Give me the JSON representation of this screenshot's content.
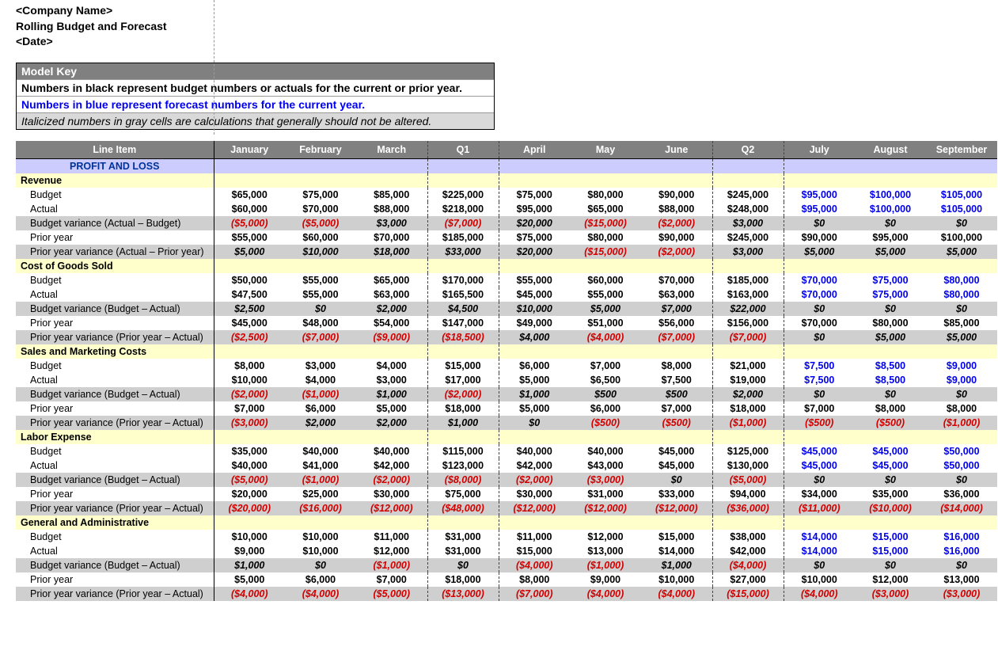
{
  "header": {
    "company": "<Company Name>",
    "title": "Rolling Budget and Forecast",
    "date": "<Date>"
  },
  "model_key": {
    "heading": "Model Key",
    "black": "Numbers in black represent budget numbers or actuals for the current or prior year.",
    "blue": "Numbers in blue represent forecast numbers for the current year.",
    "calc": "Italicized numbers in gray cells are calculations that generally should not be altered."
  },
  "columns": {
    "lineitem": "Line Item",
    "m1": "January",
    "m2": "February",
    "m3": "March",
    "q1": "Q1",
    "m4": "April",
    "m5": "May",
    "m6": "June",
    "q2": "Q2",
    "m7": "July",
    "m8": "August",
    "m9": "September"
  },
  "section_title": "PROFIT AND LOSS",
  "categories": [
    {
      "name": "Revenue",
      "rows": [
        {
          "label": "Budget",
          "calc": false,
          "vals": [
            "$65,000",
            "$75,000",
            "$85,000",
            "$225,000",
            "$75,000",
            "$80,000",
            "$90,000",
            "$245,000",
            "$95,000",
            "$100,000",
            "$105,000"
          ],
          "styles": [
            "b",
            "b",
            "b",
            "q",
            "b",
            "b",
            "b",
            "q",
            "f",
            "f",
            "f"
          ]
        },
        {
          "label": "Actual",
          "calc": false,
          "vals": [
            "$60,000",
            "$70,000",
            "$88,000",
            "$218,000",
            "$95,000",
            "$65,000",
            "$88,000",
            "$248,000",
            "$95,000",
            "$100,000",
            "$105,000"
          ],
          "styles": [
            "b",
            "b",
            "b",
            "q",
            "b",
            "b",
            "b",
            "q",
            "f",
            "f",
            "f"
          ]
        },
        {
          "label": "Budget variance (Actual – Budget)",
          "calc": true,
          "vals": [
            "($5,000)",
            "($5,000)",
            "$3,000",
            "($7,000)",
            "$20,000",
            "($15,000)",
            "($2,000)",
            "$3,000",
            "$0",
            "$0",
            "$0"
          ],
          "styles": [
            "n",
            "n",
            "p",
            "n",
            "p",
            "n",
            "n",
            "p",
            "z",
            "z",
            "z"
          ]
        },
        {
          "label": "Prior year",
          "calc": false,
          "vals": [
            "$55,000",
            "$60,000",
            "$70,000",
            "$185,000",
            "$75,000",
            "$80,000",
            "$90,000",
            "$245,000",
            "$90,000",
            "$95,000",
            "$100,000"
          ],
          "styles": [
            "b",
            "b",
            "b",
            "q",
            "b",
            "b",
            "b",
            "q",
            "b",
            "b",
            "b"
          ]
        },
        {
          "label": "Prior year variance (Actual – Prior year)",
          "calc": true,
          "vals": [
            "$5,000",
            "$10,000",
            "$18,000",
            "$33,000",
            "$20,000",
            "($15,000)",
            "($2,000)",
            "$3,000",
            "$5,000",
            "$5,000",
            "$5,000"
          ],
          "styles": [
            "p",
            "p",
            "p",
            "p",
            "p",
            "n",
            "n",
            "p",
            "p",
            "p",
            "p"
          ]
        }
      ]
    },
    {
      "name": "Cost of Goods Sold",
      "rows": [
        {
          "label": "Budget",
          "calc": false,
          "vals": [
            "$50,000",
            "$55,000",
            "$65,000",
            "$170,000",
            "$55,000",
            "$60,000",
            "$70,000",
            "$185,000",
            "$70,000",
            "$75,000",
            "$80,000"
          ],
          "styles": [
            "b",
            "b",
            "b",
            "q",
            "b",
            "b",
            "b",
            "q",
            "f",
            "f",
            "f"
          ]
        },
        {
          "label": "Actual",
          "calc": false,
          "vals": [
            "$47,500",
            "$55,000",
            "$63,000",
            "$165,500",
            "$45,000",
            "$55,000",
            "$63,000",
            "$163,000",
            "$70,000",
            "$75,000",
            "$80,000"
          ],
          "styles": [
            "b",
            "b",
            "b",
            "q",
            "b",
            "b",
            "b",
            "q",
            "f",
            "f",
            "f"
          ]
        },
        {
          "label": "Budget variance (Budget – Actual)",
          "calc": true,
          "vals": [
            "$2,500",
            "$0",
            "$2,000",
            "$4,500",
            "$10,000",
            "$5,000",
            "$7,000",
            "$22,000",
            "$0",
            "$0",
            "$0"
          ],
          "styles": [
            "p",
            "p",
            "p",
            "p",
            "p",
            "p",
            "p",
            "p",
            "z",
            "z",
            "z"
          ]
        },
        {
          "label": "Prior year",
          "calc": false,
          "vals": [
            "$45,000",
            "$48,000",
            "$54,000",
            "$147,000",
            "$49,000",
            "$51,000",
            "$56,000",
            "$156,000",
            "$70,000",
            "$80,000",
            "$85,000"
          ],
          "styles": [
            "b",
            "b",
            "b",
            "q",
            "b",
            "b",
            "b",
            "q",
            "b",
            "b",
            "b"
          ]
        },
        {
          "label": "Prior year variance (Prior year – Actual)",
          "calc": true,
          "vals": [
            "($2,500)",
            "($7,000)",
            "($9,000)",
            "($18,500)",
            "$4,000",
            "($4,000)",
            "($7,000)",
            "($7,000)",
            "$0",
            "$5,000",
            "$5,000"
          ],
          "styles": [
            "n",
            "n",
            "n",
            "n",
            "p",
            "n",
            "n",
            "n",
            "z",
            "p",
            "p"
          ]
        }
      ]
    },
    {
      "name": "Sales and Marketing Costs",
      "rows": [
        {
          "label": "Budget",
          "calc": false,
          "vals": [
            "$8,000",
            "$3,000",
            "$4,000",
            "$15,000",
            "$6,000",
            "$7,000",
            "$8,000",
            "$21,000",
            "$7,500",
            "$8,500",
            "$9,000"
          ],
          "styles": [
            "b",
            "b",
            "b",
            "q",
            "b",
            "b",
            "b",
            "q",
            "f",
            "f",
            "f"
          ]
        },
        {
          "label": "Actual",
          "calc": false,
          "vals": [
            "$10,000",
            "$4,000",
            "$3,000",
            "$17,000",
            "$5,000",
            "$6,500",
            "$7,500",
            "$19,000",
            "$7,500",
            "$8,500",
            "$9,000"
          ],
          "styles": [
            "b",
            "b",
            "b",
            "q",
            "b",
            "b",
            "b",
            "q",
            "f",
            "f",
            "f"
          ]
        },
        {
          "label": "Budget variance (Budget – Actual)",
          "calc": true,
          "vals": [
            "($2,000)",
            "($1,000)",
            "$1,000",
            "($2,000)",
            "$1,000",
            "$500",
            "$500",
            "$2,000",
            "$0",
            "$0",
            "$0"
          ],
          "styles": [
            "n",
            "n",
            "p",
            "n",
            "p",
            "p",
            "p",
            "p",
            "z",
            "z",
            "z"
          ]
        },
        {
          "label": "Prior year",
          "calc": false,
          "vals": [
            "$7,000",
            "$6,000",
            "$5,000",
            "$18,000",
            "$5,000",
            "$6,000",
            "$7,000",
            "$18,000",
            "$7,000",
            "$8,000",
            "$8,000"
          ],
          "styles": [
            "b",
            "b",
            "b",
            "q",
            "b",
            "b",
            "b",
            "q",
            "b",
            "b",
            "b"
          ]
        },
        {
          "label": "Prior year variance (Prior year – Actual)",
          "calc": true,
          "vals": [
            "($3,000)",
            "$2,000",
            "$2,000",
            "$1,000",
            "$0",
            "($500)",
            "($500)",
            "($1,000)",
            "($500)",
            "($500)",
            "($1,000)"
          ],
          "styles": [
            "n",
            "p",
            "p",
            "p",
            "z",
            "n",
            "n",
            "n",
            "n",
            "n",
            "n"
          ]
        }
      ]
    },
    {
      "name": "Labor Expense",
      "rows": [
        {
          "label": "Budget",
          "calc": false,
          "vals": [
            "$35,000",
            "$40,000",
            "$40,000",
            "$115,000",
            "$40,000",
            "$40,000",
            "$45,000",
            "$125,000",
            "$45,000",
            "$45,000",
            "$50,000"
          ],
          "styles": [
            "b",
            "b",
            "b",
            "q",
            "b",
            "b",
            "b",
            "q",
            "f",
            "f",
            "f"
          ]
        },
        {
          "label": "Actual",
          "calc": false,
          "vals": [
            "$40,000",
            "$41,000",
            "$42,000",
            "$123,000",
            "$42,000",
            "$43,000",
            "$45,000",
            "$130,000",
            "$45,000",
            "$45,000",
            "$50,000"
          ],
          "styles": [
            "b",
            "b",
            "b",
            "q",
            "b",
            "b",
            "b",
            "q",
            "f",
            "f",
            "f"
          ]
        },
        {
          "label": "Budget variance (Budget – Actual)",
          "calc": true,
          "vals": [
            "($5,000)",
            "($1,000)",
            "($2,000)",
            "($8,000)",
            "($2,000)",
            "($3,000)",
            "$0",
            "($5,000)",
            "$0",
            "$0",
            "$0"
          ],
          "styles": [
            "n",
            "n",
            "n",
            "n",
            "n",
            "n",
            "z",
            "n",
            "z",
            "z",
            "z"
          ]
        },
        {
          "label": "Prior year",
          "calc": false,
          "vals": [
            "$20,000",
            "$25,000",
            "$30,000",
            "$75,000",
            "$30,000",
            "$31,000",
            "$33,000",
            "$94,000",
            "$34,000",
            "$35,000",
            "$36,000"
          ],
          "styles": [
            "b",
            "b",
            "b",
            "q",
            "b",
            "b",
            "b",
            "q",
            "b",
            "b",
            "b"
          ]
        },
        {
          "label": "Prior year variance (Prior year – Actual)",
          "calc": true,
          "vals": [
            "($20,000)",
            "($16,000)",
            "($12,000)",
            "($48,000)",
            "($12,000)",
            "($12,000)",
            "($12,000)",
            "($36,000)",
            "($11,000)",
            "($10,000)",
            "($14,000)"
          ],
          "styles": [
            "n",
            "n",
            "n",
            "n",
            "n",
            "n",
            "n",
            "n",
            "n",
            "n",
            "n"
          ]
        }
      ]
    },
    {
      "name": "General and Administrative",
      "rows": [
        {
          "label": "Budget",
          "calc": false,
          "vals": [
            "$10,000",
            "$10,000",
            "$11,000",
            "$31,000",
            "$11,000",
            "$12,000",
            "$15,000",
            "$38,000",
            "$14,000",
            "$15,000",
            "$16,000"
          ],
          "styles": [
            "b",
            "b",
            "b",
            "q",
            "b",
            "b",
            "b",
            "q",
            "f",
            "f",
            "f"
          ]
        },
        {
          "label": "Actual",
          "calc": false,
          "vals": [
            "$9,000",
            "$10,000",
            "$12,000",
            "$31,000",
            "$15,000",
            "$13,000",
            "$14,000",
            "$42,000",
            "$14,000",
            "$15,000",
            "$16,000"
          ],
          "styles": [
            "b",
            "b",
            "b",
            "q",
            "b",
            "b",
            "b",
            "q",
            "f",
            "f",
            "f"
          ]
        },
        {
          "label": "Budget variance (Budget – Actual)",
          "calc": true,
          "vals": [
            "$1,000",
            "$0",
            "($1,000)",
            "$0",
            "($4,000)",
            "($1,000)",
            "$1,000",
            "($4,000)",
            "$0",
            "$0",
            "$0"
          ],
          "styles": [
            "p",
            "z",
            "n",
            "z",
            "n",
            "n",
            "p",
            "n",
            "z",
            "z",
            "z"
          ]
        },
        {
          "label": "Prior year",
          "calc": false,
          "vals": [
            "$5,000",
            "$6,000",
            "$7,000",
            "$18,000",
            "$8,000",
            "$9,000",
            "$10,000",
            "$27,000",
            "$10,000",
            "$12,000",
            "$13,000"
          ],
          "styles": [
            "b",
            "b",
            "b",
            "q",
            "b",
            "b",
            "b",
            "q",
            "b",
            "b",
            "b"
          ]
        },
        {
          "label": "Prior year variance (Prior year – Actual)",
          "calc": true,
          "vals": [
            "($4,000)",
            "($4,000)",
            "($5,000)",
            "($13,000)",
            "($7,000)",
            "($4,000)",
            "($4,000)",
            "($15,000)",
            "($4,000)",
            "($3,000)",
            "($3,000)"
          ],
          "styles": [
            "n",
            "n",
            "n",
            "n",
            "n",
            "n",
            "n",
            "n",
            "n",
            "n",
            "n"
          ]
        }
      ]
    }
  ]
}
